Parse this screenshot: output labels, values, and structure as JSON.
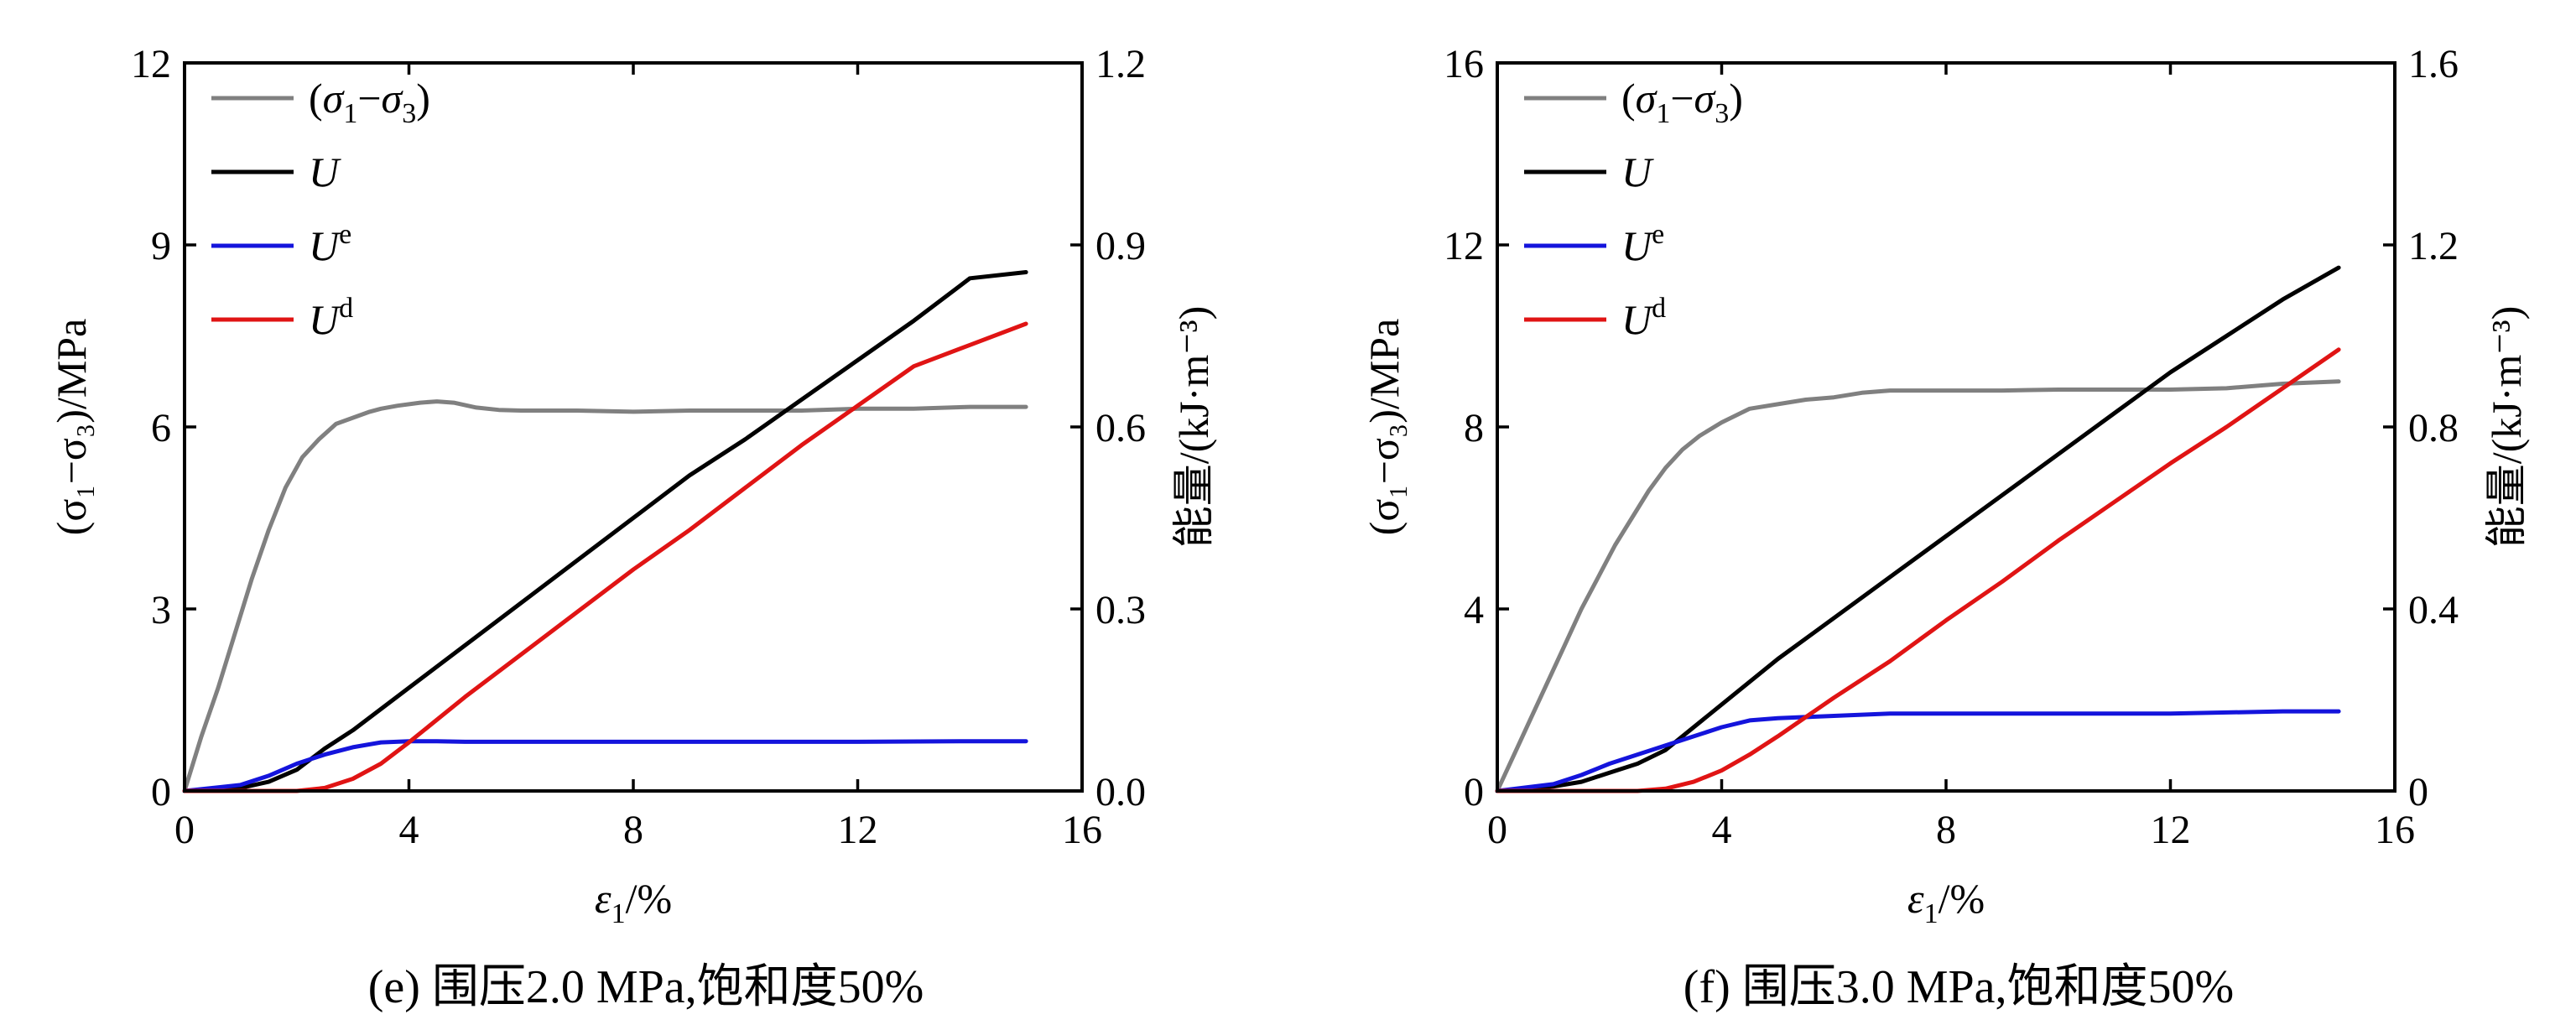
{
  "chart_data": [
    {
      "type": "line",
      "caption": "(e) 围压2.0 MPa,饱和度50%",
      "xlabel_main": "ε",
      "xlabel_sub": "1",
      "xlabel_tail": "/%",
      "ylabel_left": "(σ₁−σ₃)/MPa",
      "ylabel_right": "能量/(kJ·m⁻³)",
      "xlim": [
        0,
        16
      ],
      "xticks": [
        0,
        4,
        8,
        12,
        16
      ],
      "ylim_left": [
        0,
        12
      ],
      "yticks_left": [
        0,
        3,
        6,
        9,
        12
      ],
      "ylim_right": [
        0.0,
        1.2
      ],
      "yticks_right": [
        "0.0",
        "0.3",
        "0.6",
        "0.9",
        "1.2"
      ],
      "legend_position": "top-left",
      "series": [
        {
          "name": "(σ1−σ3)",
          "legend_main": "(σ",
          "legend_sub1": "1",
          "legend_mid": "−σ",
          "legend_sub2": "3",
          "legend_tail": ")",
          "axis": "left",
          "color": "#808080",
          "x": [
            0,
            0.3,
            0.6,
            0.9,
            1.2,
            1.5,
            1.8,
            2.1,
            2.4,
            2.7,
            3.0,
            3.3,
            3.5,
            3.8,
            4.2,
            4.5,
            4.8,
            5.2,
            5.6,
            6,
            7,
            8,
            9,
            10,
            11,
            12,
            13,
            14,
            15
          ],
          "y": [
            0,
            0.9,
            1.7,
            2.6,
            3.5,
            4.3,
            5.0,
            5.5,
            5.8,
            6.05,
            6.15,
            6.25,
            6.3,
            6.35,
            6.4,
            6.42,
            6.4,
            6.32,
            6.28,
            6.27,
            6.27,
            6.25,
            6.27,
            6.27,
            6.27,
            6.3,
            6.3,
            6.33,
            6.33
          ]
        },
        {
          "name": "U",
          "legend_main": "U",
          "axis": "right",
          "color": "#000000",
          "x": [
            0,
            1,
            1.5,
            2,
            2.5,
            3,
            4,
            5,
            6,
            7,
            8,
            9,
            10,
            11,
            12,
            13,
            14,
            15
          ],
          "y": [
            0,
            0.005,
            0.015,
            0.035,
            0.07,
            0.1,
            0.17,
            0.24,
            0.31,
            0.38,
            0.45,
            0.52,
            0.58,
            0.645,
            0.71,
            0.775,
            0.845,
            0.855
          ]
        },
        {
          "name": "Ue",
          "legend_main": "U",
          "legend_sup": "e",
          "axis": "right",
          "color": "#1414dc",
          "x": [
            0,
            1,
            1.5,
            2,
            2.5,
            3,
            3.5,
            4,
            4.5,
            5,
            6,
            8,
            10,
            12,
            14,
            15
          ],
          "y": [
            0,
            0.01,
            0.025,
            0.045,
            0.06,
            0.072,
            0.08,
            0.082,
            0.082,
            0.081,
            0.081,
            0.081,
            0.081,
            0.081,
            0.082,
            0.082
          ]
        },
        {
          "name": "Ud",
          "legend_main": "U",
          "legend_sup": "d",
          "axis": "right",
          "color": "#e01414",
          "x": [
            0,
            2,
            2.5,
            3,
            3.5,
            4,
            5,
            6,
            7,
            8,
            9,
            10,
            11,
            12,
            13,
            14,
            15
          ],
          "y": [
            0,
            0,
            0.005,
            0.02,
            0.045,
            0.08,
            0.155,
            0.225,
            0.295,
            0.365,
            0.43,
            0.5,
            0.57,
            0.635,
            0.7,
            0.735,
            0.77
          ]
        }
      ]
    },
    {
      "type": "line",
      "caption": "(f) 围压3.0 MPa,饱和度50%",
      "xlabel_main": "ε",
      "xlabel_sub": "1",
      "xlabel_tail": "/%",
      "ylabel_left": "(σ₁−σ₃)/MPa",
      "ylabel_right": "能量/(kJ·m⁻³)",
      "xlim": [
        0,
        16
      ],
      "xticks": [
        0,
        4,
        8,
        12,
        16
      ],
      "ylim_left": [
        0,
        16
      ],
      "yticks_left": [
        0,
        4,
        8,
        12,
        16
      ],
      "ylim_right": [
        0.0,
        1.6
      ],
      "yticks_right": [
        "0",
        "0.4",
        "0.8",
        "1.2",
        "1.6"
      ],
      "legend_position": "top-left",
      "series": [
        {
          "name": "(σ1−σ3)",
          "legend_main": "(σ",
          "legend_sub1": "1",
          "legend_mid": "−σ",
          "legend_sub2": "3",
          "legend_tail": ")",
          "axis": "left",
          "color": "#808080",
          "x": [
            0,
            0.3,
            0.6,
            0.9,
            1.2,
            1.5,
            1.8,
            2.1,
            2.4,
            2.7,
            3.0,
            3.3,
            3.6,
            4.0,
            4.5,
            5,
            5.5,
            6,
            6.5,
            7,
            8,
            9,
            10,
            11,
            12,
            13,
            14,
            15
          ],
          "y": [
            0,
            0.8,
            1.6,
            2.4,
            3.2,
            4.0,
            4.7,
            5.4,
            6.0,
            6.6,
            7.1,
            7.5,
            7.8,
            8.1,
            8.4,
            8.5,
            8.6,
            8.65,
            8.75,
            8.8,
            8.8,
            8.8,
            8.82,
            8.82,
            8.82,
            8.85,
            8.95,
            9.0
          ]
        },
        {
          "name": "U",
          "legend_main": "U",
          "axis": "right",
          "color": "#000000",
          "x": [
            0,
            1,
            1.5,
            2,
            2.5,
            3,
            4,
            5,
            6,
            7,
            8,
            9,
            10,
            11,
            12,
            13,
            14,
            15
          ],
          "y": [
            0,
            0.01,
            0.02,
            0.04,
            0.06,
            0.09,
            0.19,
            0.29,
            0.38,
            0.47,
            0.56,
            0.65,
            0.74,
            0.83,
            0.92,
            1.0,
            1.08,
            1.15
          ]
        },
        {
          "name": "Ue",
          "legend_main": "U",
          "legend_sup": "e",
          "axis": "right",
          "color": "#1414dc",
          "x": [
            0,
            1,
            1.5,
            2,
            2.5,
            3,
            3.5,
            4,
            4.5,
            5,
            6,
            7,
            8,
            10,
            12,
            14,
            15
          ],
          "y": [
            0,
            0.015,
            0.035,
            0.06,
            0.08,
            0.1,
            0.12,
            0.14,
            0.155,
            0.16,
            0.165,
            0.17,
            0.17,
            0.17,
            0.17,
            0.175,
            0.175
          ]
        },
        {
          "name": "Ud",
          "legend_main": "U",
          "legend_sup": "d",
          "axis": "right",
          "color": "#e01414",
          "x": [
            0,
            2.5,
            3,
            3.5,
            4,
            4.5,
            5,
            6,
            7,
            8,
            9,
            10,
            11,
            12,
            13,
            14,
            15
          ],
          "y": [
            0,
            0,
            0.005,
            0.02,
            0.045,
            0.08,
            0.12,
            0.205,
            0.285,
            0.375,
            0.46,
            0.55,
            0.635,
            0.72,
            0.8,
            0.885,
            0.97
          ]
        }
      ]
    }
  ]
}
